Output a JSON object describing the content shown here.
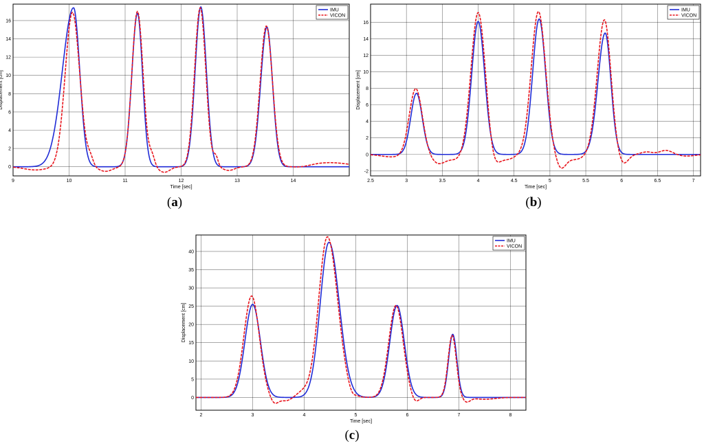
{
  "captions": {
    "a": {
      "open": "(",
      "letter": "a",
      "close": ")"
    },
    "b": {
      "open": "(",
      "letter": "b",
      "close": ")"
    },
    "c": {
      "open": "(",
      "letter": "c",
      "close": ")"
    }
  },
  "colors": {
    "imu": "#1f2bd6",
    "vicon": "#e8141c"
  },
  "chart_data": [
    {
      "id": "a",
      "type": "line",
      "xlabel": "Time [sec]",
      "ylabel": "Displacement [cm]",
      "xlim": [
        9,
        15
      ],
      "ylim": [
        -1,
        17.8
      ],
      "xticks": [
        9,
        10,
        11,
        12,
        13,
        14
      ],
      "yticks": [
        0,
        2,
        4,
        6,
        8,
        10,
        12,
        14,
        16
      ],
      "grid": true,
      "legend": "top-right",
      "series": [
        {
          "name": "IMU",
          "style": "solid",
          "peaks": [
            {
              "center": 10.08,
              "amp": 17.4,
              "wl": 0.2,
              "wr": 0.11
            },
            {
              "center": 11.22,
              "amp": 16.8,
              "wl": 0.1,
              "wr": 0.09
            },
            {
              "center": 12.35,
              "amp": 17.5,
              "wl": 0.1,
              "wr": 0.1
            },
            {
              "center": 13.53,
              "amp": 15.3,
              "wl": 0.11,
              "wr": 0.1
            }
          ]
        },
        {
          "name": "VICON",
          "style": "dashed",
          "peaks": [
            {
              "center": 10.06,
              "amp": 16.9,
              "wl": 0.13,
              "wr": 0.13
            },
            {
              "center": 11.22,
              "amp": 17.0,
              "wl": 0.1,
              "wr": 0.1
            },
            {
              "center": 12.34,
              "amp": 17.4,
              "wl": 0.1,
              "wr": 0.1
            },
            {
              "center": 13.52,
              "amp": 15.4,
              "wl": 0.11,
              "wr": 0.11
            }
          ],
          "extras": [
            {
              "center": 9.4,
              "amp": -0.35,
              "w": 0.2
            },
            {
              "center": 10.38,
              "amp": 0.8,
              "w": 0.05
            },
            {
              "center": 10.65,
              "amp": -0.5,
              "w": 0.12
            },
            {
              "center": 11.48,
              "amp": 1.1,
              "w": 0.05
            },
            {
              "center": 11.7,
              "amp": -0.6,
              "w": 0.1
            },
            {
              "center": 12.62,
              "amp": 1.0,
              "w": 0.04
            },
            {
              "center": 12.85,
              "amp": -0.4,
              "w": 0.1
            },
            {
              "center": 14.15,
              "amp": -0.15,
              "w": 0.15
            },
            {
              "center": 14.65,
              "amp": 0.45,
              "w": 0.35
            }
          ]
        }
      ]
    },
    {
      "id": "b",
      "type": "line",
      "xlabel": "Time [sec]",
      "ylabel": "Displacement [cm]",
      "xlim": [
        2.5,
        7.1
      ],
      "ylim": [
        -2.6,
        18.2
      ],
      "xticks": [
        2.5,
        3,
        3.5,
        4,
        4.5,
        5,
        5.5,
        6,
        6.5,
        7
      ],
      "yticks": [
        -2,
        0,
        2,
        4,
        6,
        8,
        10,
        12,
        14,
        16
      ],
      "grid": true,
      "legend": "top-right",
      "series": [
        {
          "name": "IMU",
          "style": "solid",
          "peaks": [
            {
              "center": 3.14,
              "amp": 7.4,
              "wl": 0.08,
              "wr": 0.08
            },
            {
              "center": 4.0,
              "amp": 16.1,
              "wl": 0.09,
              "wr": 0.09
            },
            {
              "center": 4.85,
              "amp": 16.4,
              "wl": 0.09,
              "wr": 0.09
            },
            {
              "center": 5.77,
              "amp": 14.7,
              "wl": 0.1,
              "wr": 0.08
            }
          ]
        },
        {
          "name": "VICON",
          "style": "dashed",
          "peaks": [
            {
              "center": 3.13,
              "amp": 8.0,
              "wl": 0.09,
              "wr": 0.09
            },
            {
              "center": 4.0,
              "amp": 17.2,
              "wl": 0.1,
              "wr": 0.1
            },
            {
              "center": 4.84,
              "amp": 17.3,
              "wl": 0.1,
              "wr": 0.1
            },
            {
              "center": 5.76,
              "amp": 16.3,
              "wl": 0.1,
              "wr": 0.09
            }
          ],
          "extras": [
            {
              "center": 2.8,
              "amp": -0.3,
              "w": 0.15
            },
            {
              "center": 3.45,
              "amp": -1.1,
              "w": 0.1
            },
            {
              "center": 3.7,
              "amp": -0.6,
              "w": 0.1
            },
            {
              "center": 4.22,
              "amp": -1.4,
              "w": 0.07
            },
            {
              "center": 4.4,
              "amp": -0.6,
              "w": 0.1
            },
            {
              "center": 5.15,
              "amp": -1.6,
              "w": 0.07
            },
            {
              "center": 5.35,
              "amp": -0.6,
              "w": 0.12
            },
            {
              "center": 6.02,
              "amp": -1.2,
              "w": 0.07
            },
            {
              "center": 6.35,
              "amp": 0.3,
              "w": 0.08
            },
            {
              "center": 6.62,
              "amp": 0.5,
              "w": 0.09
            },
            {
              "center": 6.9,
              "amp": -0.2,
              "w": 0.12
            }
          ]
        }
      ]
    },
    {
      "id": "c",
      "type": "line",
      "xlabel": "Time [sec]",
      "ylabel": "Displacement [cm]",
      "xlim": [
        1.9,
        8.3
      ],
      "ylim": [
        -3.5,
        44.5
      ],
      "xticks": [
        2,
        3,
        4,
        5,
        6,
        7,
        8
      ],
      "yticks": [
        0,
        5,
        10,
        15,
        20,
        25,
        30,
        35,
        40
      ],
      "grid": true,
      "legend": "top-right",
      "series": [
        {
          "name": "IMU",
          "style": "solid",
          "peaks": [
            {
              "center": 3.0,
              "amp": 25.5,
              "wl": 0.15,
              "wr": 0.15
            },
            {
              "center": 4.48,
              "amp": 42.5,
              "wl": 0.17,
              "wr": 0.2
            },
            {
              "center": 5.8,
              "amp": 25.2,
              "wl": 0.14,
              "wr": 0.14
            },
            {
              "center": 6.88,
              "amp": 17.3,
              "wl": 0.08,
              "wr": 0.08
            }
          ]
        },
        {
          "name": "VICON",
          "style": "dashed",
          "peaks": [
            {
              "center": 2.98,
              "amp": 27.8,
              "wl": 0.15,
              "wr": 0.15
            },
            {
              "center": 4.45,
              "amp": 44.0,
              "wl": 0.17,
              "wr": 0.2
            },
            {
              "center": 5.78,
              "amp": 25.2,
              "wl": 0.14,
              "wr": 0.14
            },
            {
              "center": 6.87,
              "amp": 17.0,
              "wl": 0.08,
              "wr": 0.08
            }
          ],
          "extras": [
            {
              "center": 3.42,
              "amp": -1.8,
              "w": 0.08
            },
            {
              "center": 3.65,
              "amp": -0.9,
              "w": 0.1
            },
            {
              "center": 3.98,
              "amp": 1.5,
              "w": 0.12
            },
            {
              "center": 4.92,
              "amp": -1.0,
              "w": 0.06
            },
            {
              "center": 6.15,
              "amp": -1.5,
              "w": 0.07
            },
            {
              "center": 7.15,
              "amp": -1.2,
              "w": 0.07
            },
            {
              "center": 7.5,
              "amp": -0.5,
              "w": 0.2
            }
          ]
        }
      ]
    }
  ]
}
